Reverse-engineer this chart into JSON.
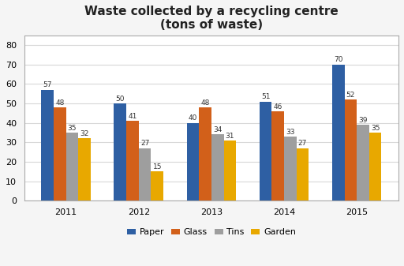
{
  "title": "Waste collected by a recycling centre\n(tons of waste)",
  "years": [
    "2011",
    "2012",
    "2013",
    "2014",
    "2015"
  ],
  "categories": [
    "Paper",
    "Glass",
    "Tins",
    "Garden"
  ],
  "values": {
    "Paper": [
      57,
      50,
      40,
      51,
      70
    ],
    "Glass": [
      48,
      41,
      48,
      46,
      52
    ],
    "Tins": [
      35,
      27,
      34,
      33,
      39
    ],
    "Garden": [
      32,
      15,
      31,
      27,
      35
    ]
  },
  "colors": {
    "Paper": "#2E5FA3",
    "Glass": "#D2601A",
    "Tins": "#9E9E9E",
    "Garden": "#E8A800"
  },
  "ylim": [
    0,
    85
  ],
  "yticks": [
    0,
    10,
    20,
    30,
    40,
    50,
    60,
    70,
    80
  ],
  "bar_width": 0.17,
  "title_fontsize": 11,
  "tick_fontsize": 8,
  "legend_fontsize": 8,
  "value_fontsize": 6.5,
  "background_color": "#F5F5F5",
  "plot_bg_color": "#FFFFFF",
  "grid_color": "#D8D8D8",
  "border_color": "#AAAAAA"
}
